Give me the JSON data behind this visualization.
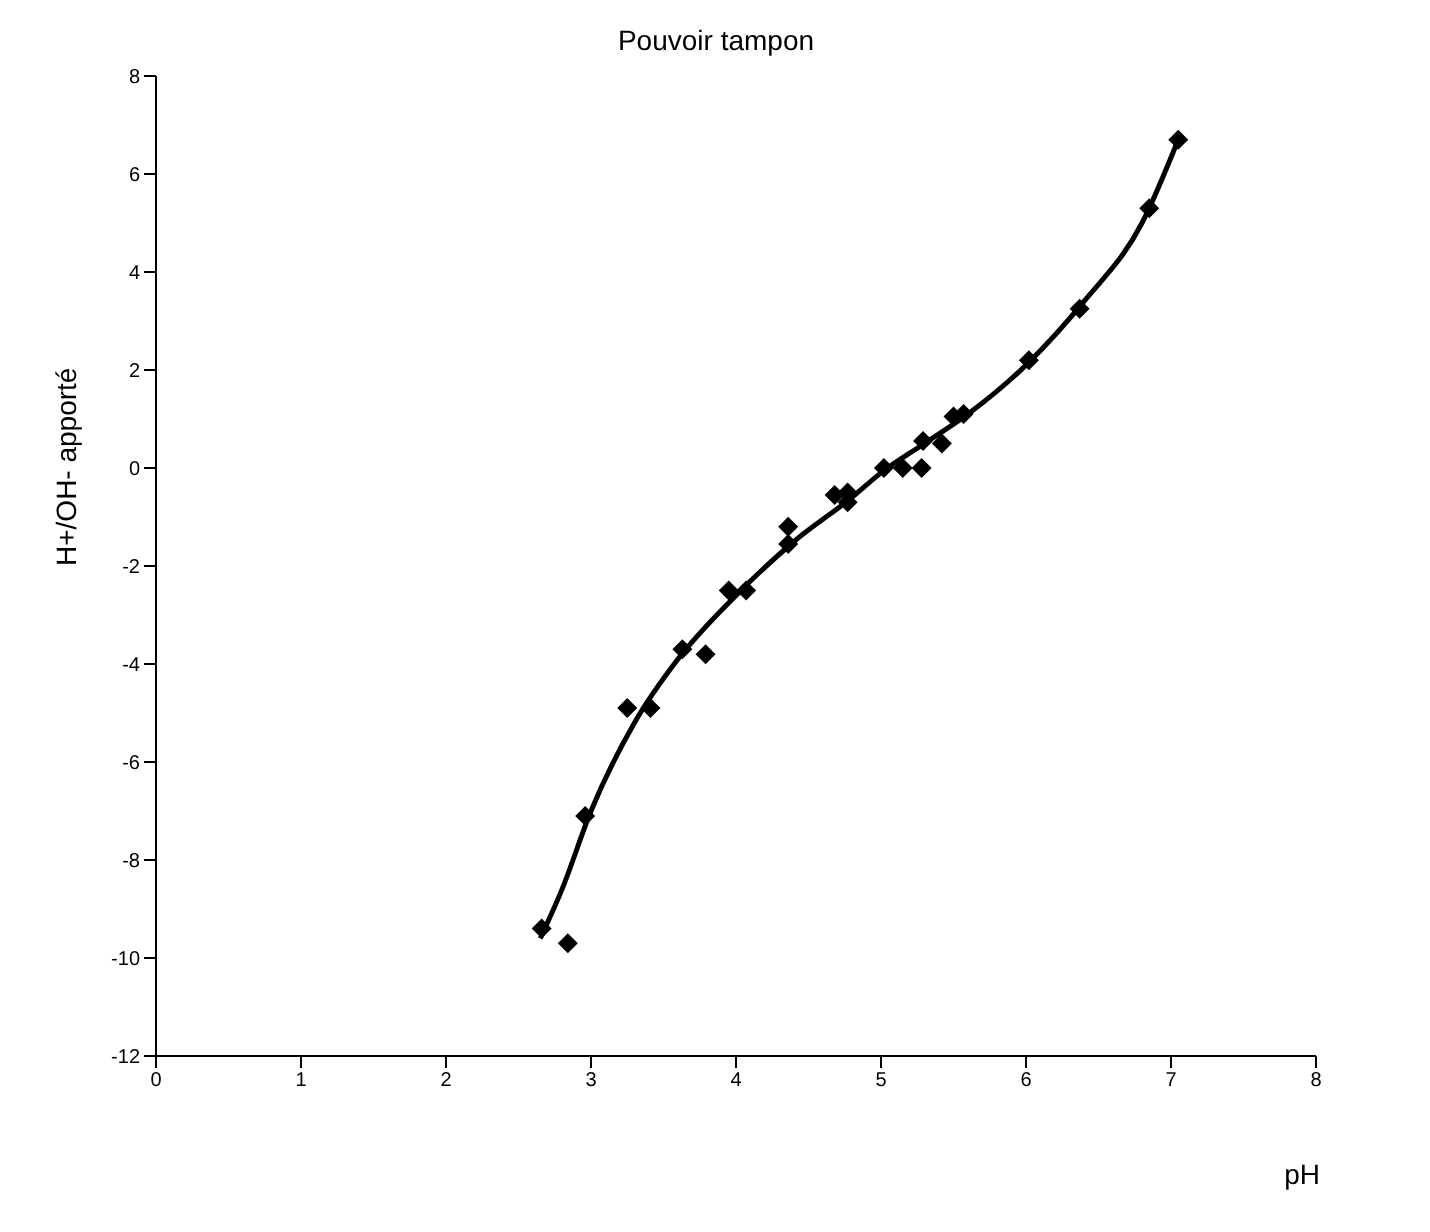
{
  "chart_data": {
    "type": "scatter",
    "title": "Pouvoir tampon",
    "xlabel": "pH",
    "ylabel": "H+/OH- apporté",
    "xlim": [
      0,
      8
    ],
    "xticks": [
      0,
      1,
      2,
      3,
      4,
      5,
      6,
      7,
      8
    ],
    "ylim": [
      -12,
      8
    ],
    "yticks": [
      -12,
      -10,
      -8,
      -6,
      -4,
      -2,
      0,
      2,
      4,
      6,
      8
    ],
    "grid": false,
    "series": [
      {
        "color": "#000000",
        "marker": "diamond",
        "x": [
          2.66,
          2.84,
          2.96,
          3.25,
          3.41,
          3.63,
          3.79,
          3.95,
          4.07,
          4.36,
          4.36,
          4.68,
          4.77,
          4.77,
          5.02,
          5.15,
          5.28,
          5.29,
          5.42,
          5.5,
          5.57,
          6.02,
          6.37,
          6.85,
          7.05
        ],
        "values": [
          -9.4,
          -9.7,
          -7.1,
          -4.9,
          -4.9,
          -3.7,
          -3.8,
          -2.5,
          -2.5,
          -1.55,
          -1.2,
          -0.55,
          -0.7,
          -0.5,
          0,
          0,
          0,
          0.55,
          0.5,
          1.05,
          1.1,
          2.2,
          3.25,
          5.3,
          6.7
        ]
      },
      {
        "type": "line",
        "color": "#000000",
        "marker": "none",
        "line_style": "solid",
        "x": [
          2.65,
          2.8,
          3.0,
          3.3,
          3.6,
          4.0,
          4.4,
          4.8,
          5.0,
          5.3,
          5.6,
          6.0,
          6.4,
          6.8,
          7.05
        ],
        "values": [
          -9.6,
          -8.6,
          -7.0,
          -5.2,
          -3.9,
          -2.6,
          -1.5,
          -0.6,
          -0.1,
          0.5,
          1.1,
          2.1,
          3.4,
          5.0,
          6.7
        ]
      }
    ]
  }
}
